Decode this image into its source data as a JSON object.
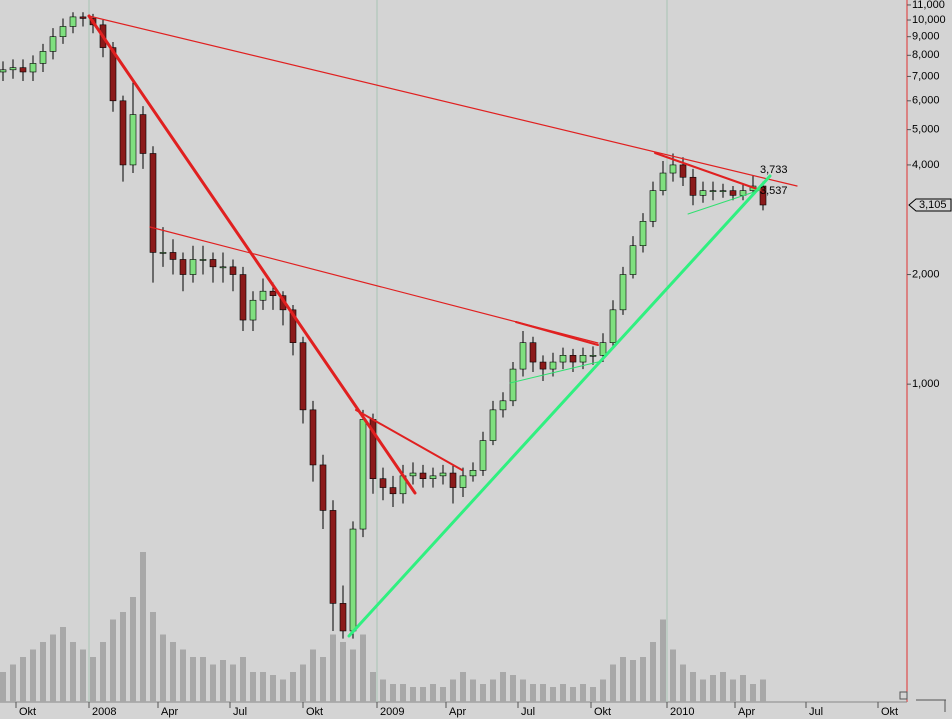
{
  "chart_data": {
    "type": "candlestick",
    "open": [
      7200,
      7300,
      7400,
      7200,
      7600,
      8200,
      9000,
      9600,
      10200,
      10100,
      9700,
      8400,
      6000,
      4000,
      5500,
      4300,
      2300,
      2300,
      2200,
      2000,
      2200,
      2200,
      2100,
      2100,
      2000,
      1500,
      1700,
      1800,
      1750,
      1600,
      1300,
      850,
      600,
      450,
      250,
      210,
      400,
      800,
      550,
      520,
      500,
      560,
      570,
      550,
      560,
      570,
      520,
      560,
      580,
      700,
      850,
      900,
      1100,
      1300,
      1150,
      1100,
      1150,
      1200,
      1150,
      1200,
      1200,
      1300,
      1600,
      2000,
      2400,
      2800,
      3400,
      3800,
      4000,
      3700,
      3300,
      3400,
      3400,
      3400,
      3300,
      3400,
      3500
    ],
    "high": [
      7700,
      7800,
      7800,
      8000,
      8600,
      9500,
      10100,
      10500,
      10500,
      10400,
      10000,
      8700,
      6200,
      6800,
      5800,
      4500,
      2700,
      2500,
      2300,
      2400,
      2400,
      2300,
      2300,
      2200,
      2100,
      1800,
      1950,
      1900,
      1800,
      1650,
      1350,
      900,
      640,
      480,
      280,
      420,
      850,
      830,
      590,
      560,
      600,
      610,
      600,
      590,
      600,
      600,
      590,
      610,
      740,
      900,
      950,
      1150,
      1400,
      1350,
      1200,
      1220,
      1260,
      1250,
      1260,
      1270,
      1380,
      1700,
      2100,
      2550,
      2950,
      3600,
      4100,
      4300,
      4200,
      3900,
      3600,
      3600,
      3550,
      3500,
      3550,
      3750,
      3600
    ],
    "low": [
      6800,
      6900,
      6800,
      6800,
      7200,
      7800,
      8600,
      9200,
      9600,
      9200,
      7900,
      5600,
      3600,
      3800,
      3900,
      1900,
      2100,
      2000,
      1800,
      1900,
      2000,
      1900,
      1900,
      1800,
      1400,
      1400,
      1600,
      1600,
      1450,
      1200,
      780,
      540,
      400,
      210,
      200,
      200,
      380,
      500,
      480,
      460,
      470,
      530,
      520,
      520,
      530,
      470,
      490,
      540,
      560,
      680,
      810,
      870,
      1050,
      1080,
      1020,
      1050,
      1100,
      1080,
      1100,
      1130,
      1150,
      1250,
      1550,
      1950,
      2300,
      2700,
      3300,
      3600,
      3500,
      3100,
      3150,
      3200,
      3250,
      3200,
      3200,
      3300,
      3000
    ],
    "close": [
      7300,
      7400,
      7200,
      7600,
      8200,
      9000,
      9600,
      10200,
      10100,
      9700,
      8400,
      6000,
      4000,
      5500,
      4300,
      2300,
      2300,
      2200,
      2000,
      2200,
      2200,
      2100,
      2100,
      2000,
      1500,
      1700,
      1800,
      1750,
      1600,
      1300,
      850,
      600,
      450,
      250,
      210,
      400,
      800,
      550,
      520,
      500,
      560,
      570,
      550,
      560,
      570,
      520,
      560,
      580,
      700,
      850,
      900,
      1100,
      1300,
      1150,
      1100,
      1150,
      1200,
      1150,
      1200,
      1200,
      1300,
      1600,
      2000,
      2400,
      2800,
      3400,
      3800,
      4000,
      3700,
      3300,
      3400,
      3400,
      3400,
      3300,
      3400,
      3500,
      3105
    ],
    "volume": [
      20,
      25,
      30,
      35,
      40,
      45,
      50,
      40,
      35,
      30,
      40,
      55,
      60,
      70,
      100,
      60,
      45,
      40,
      35,
      30,
      30,
      25,
      28,
      25,
      30,
      20,
      20,
      18,
      15,
      20,
      25,
      35,
      30,
      45,
      40,
      35,
      45,
      20,
      15,
      12,
      12,
      10,
      10,
      12,
      10,
      15,
      20,
      15,
      12,
      15,
      20,
      18,
      15,
      12,
      12,
      10,
      12,
      10,
      12,
      10,
      15,
      25,
      30,
      28,
      30,
      40,
      55,
      35,
      25,
      20,
      15,
      18,
      20,
      15,
      18,
      12,
      15
    ],
    "up_color": "#7fe07f",
    "down_color": "#8b1a1a",
    "volume_color": "#a8a8a8",
    "log_scale": true,
    "ylim": [
      134,
      11350
    ],
    "yticks": [
      {
        "value": 1000,
        "label": "1,000"
      },
      {
        "value": 2000,
        "label": "2,000"
      },
      {
        "value": 4000,
        "label": "4,000"
      },
      {
        "value": 5000,
        "label": "5,000"
      },
      {
        "value": 6000,
        "label": "6,000"
      },
      {
        "value": 7000,
        "label": "7,000"
      },
      {
        "value": 8000,
        "label": "8,000"
      },
      {
        "value": 9000,
        "label": "9,000"
      },
      {
        "value": 10000,
        "label": "10,000"
      },
      {
        "value": 11000,
        "label": "11,000"
      }
    ],
    "xlim": [
      -0.3,
      90.4
    ],
    "xticks": [
      {
        "value": 1.3,
        "label": "Okt"
      },
      {
        "value": 8.6,
        "label": "2008"
      },
      {
        "value": 15.5,
        "label": "Apr"
      },
      {
        "value": 22.7,
        "label": "Jul"
      },
      {
        "value": 30,
        "label": "Okt"
      },
      {
        "value": 37.4,
        "label": "2009"
      },
      {
        "value": 44.3,
        "label": "Apr"
      },
      {
        "value": 51.5,
        "label": "Jul"
      },
      {
        "value": 58.8,
        "label": "Okt"
      },
      {
        "value": 66.4,
        "label": "2010"
      },
      {
        "value": 73.2,
        "label": "Apr"
      },
      {
        "value": 80.3,
        "label": "Jul"
      },
      {
        "value": 87.5,
        "label": "Okt"
      }
    ],
    "vlim": [
      0,
      100
    ],
    "last_price_label": "3,105",
    "annotations": [
      {
        "text": "3,733",
        "color": "#e02020"
      },
      {
        "text": "3,537",
        "color": "#30e070"
      }
    ]
  }
}
